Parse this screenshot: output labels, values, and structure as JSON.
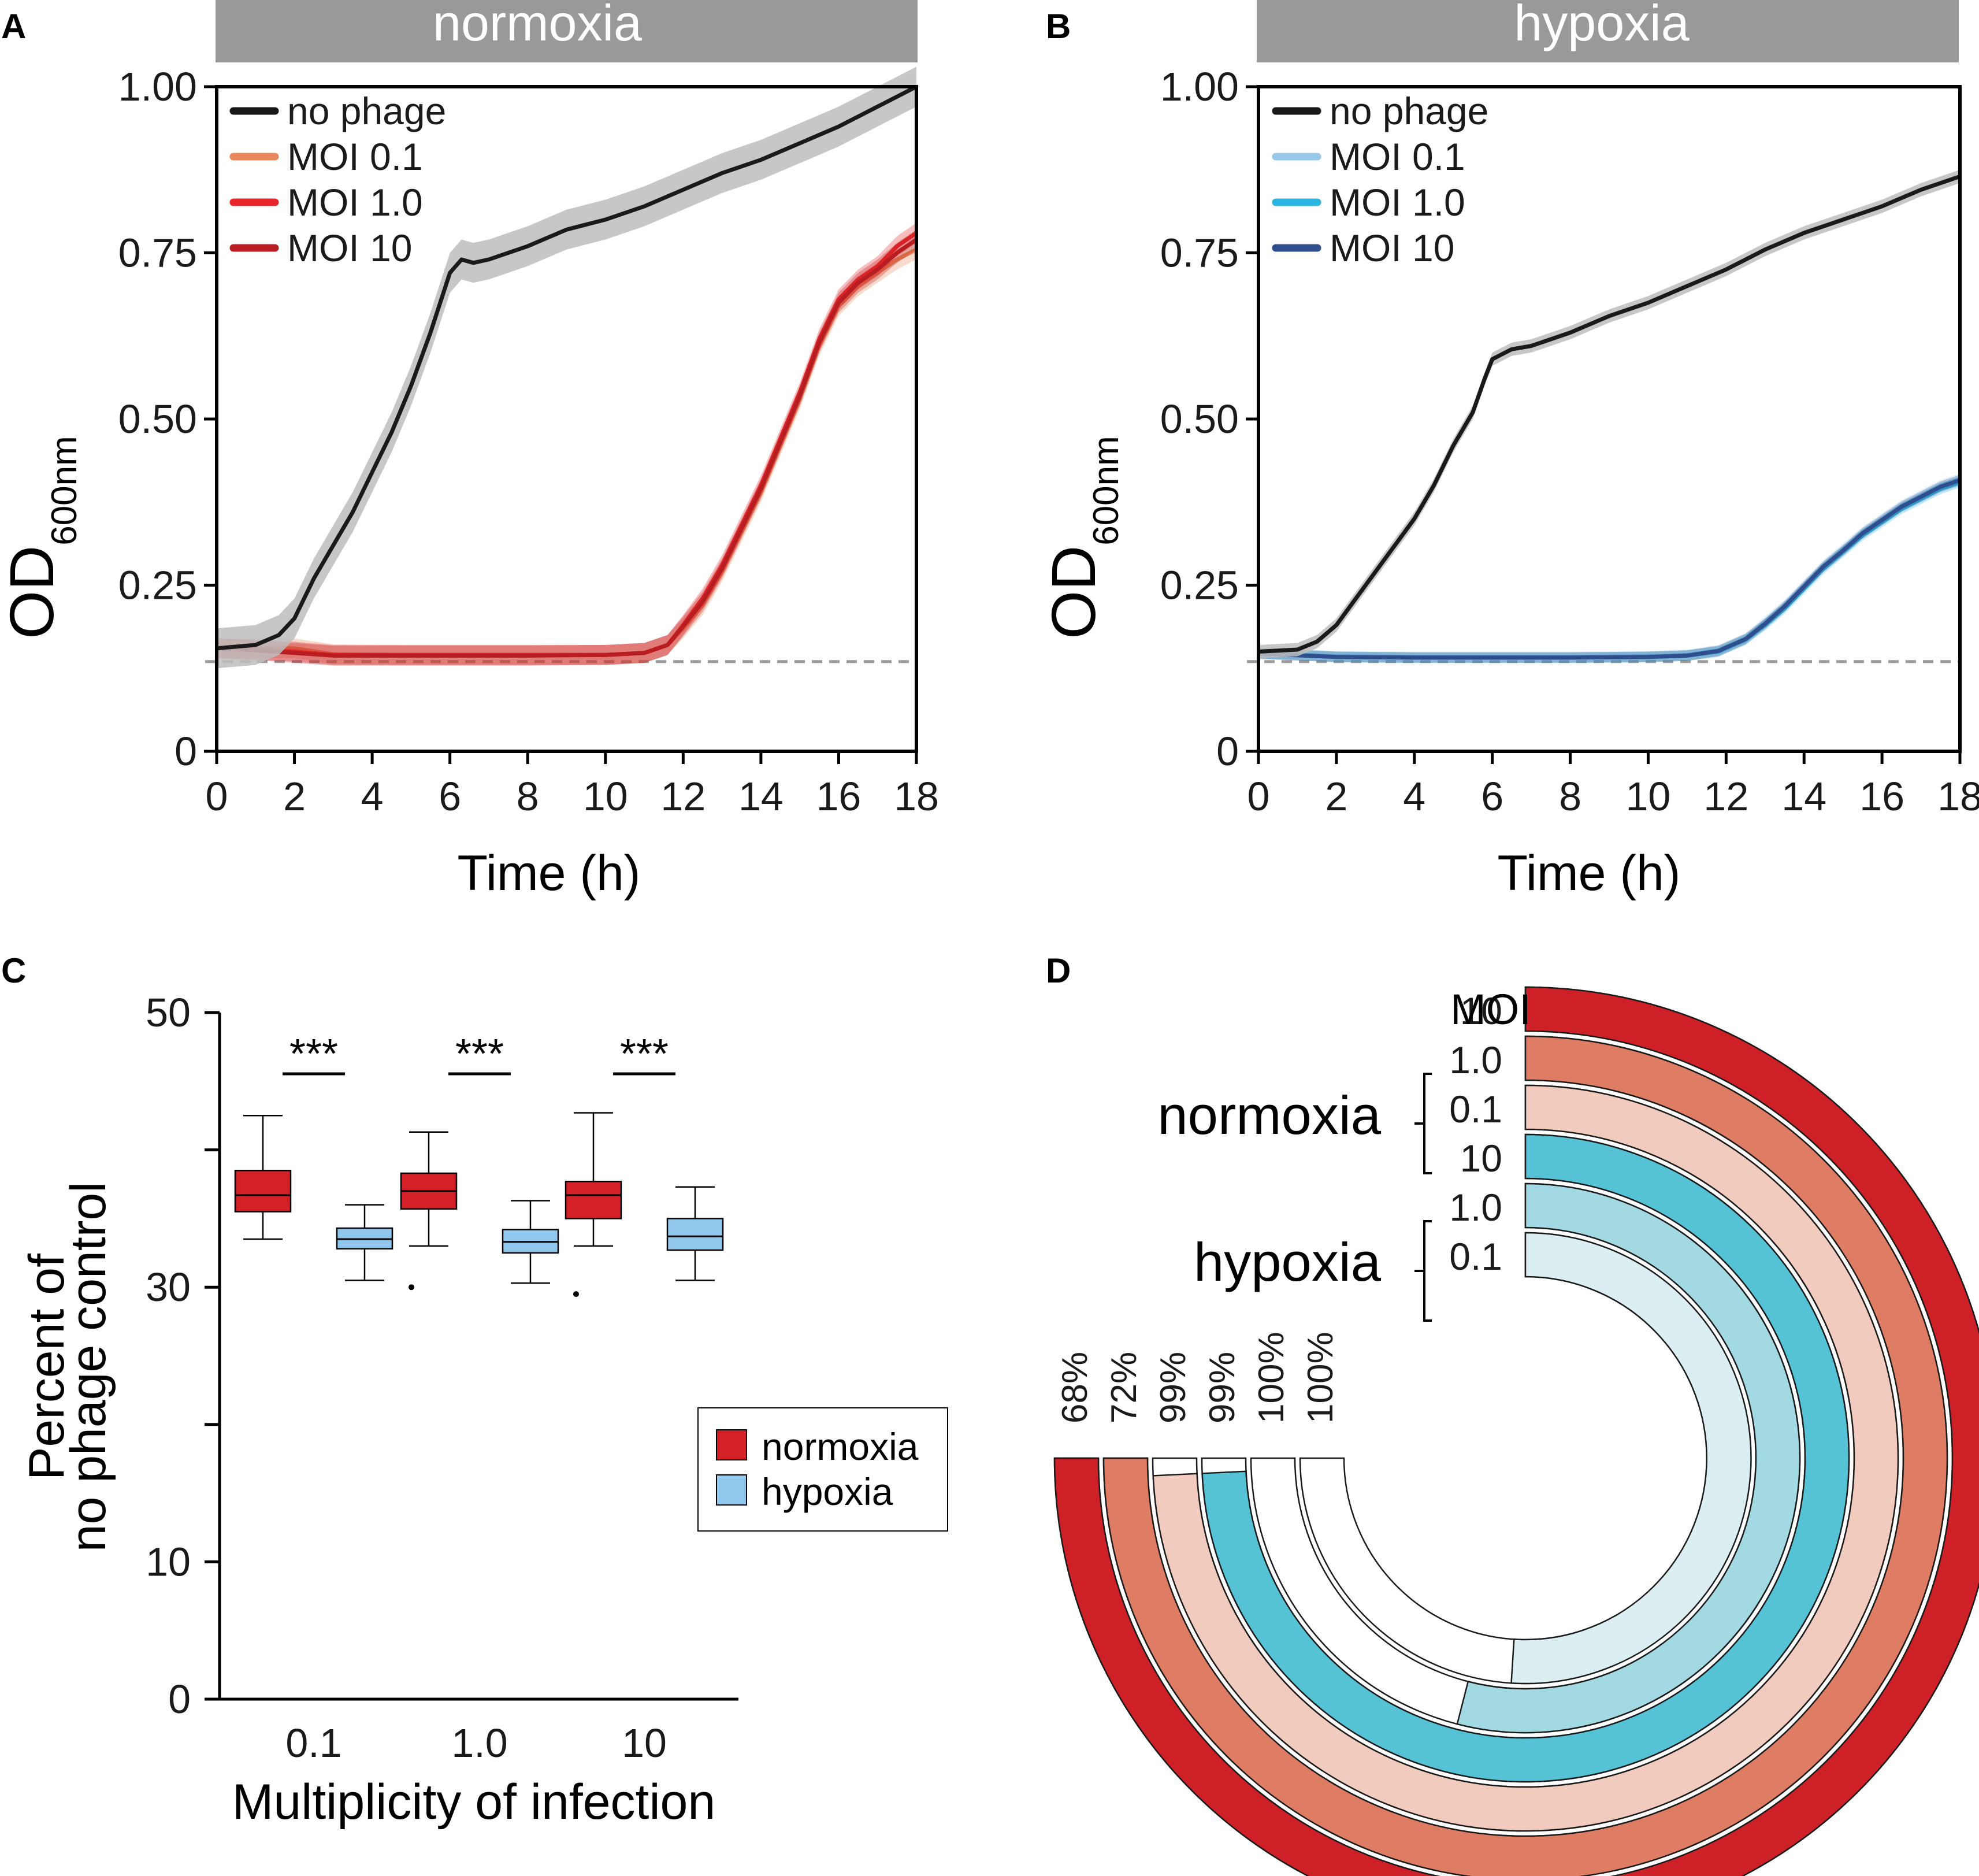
{
  "colors": {
    "no_phage": "#1a1a1a",
    "no_phage_band": "#bdbdbd",
    "n01": "#e8875a",
    "n10": "#e8262a",
    "n100": "#b81d22",
    "h01": "#98c8e8",
    "h10": "#2bb5e0",
    "h100": "#2f4e8e",
    "baseline": "#9a9a9a",
    "box_normoxia": "#d42027",
    "box_hypoxia": "#8fc8ec",
    "header_bg": "#999999",
    "ring_n10": "#cd2027",
    "ring_n1": "#de7d64",
    "ring_n01": "#f1cbbd",
    "ring_h10": "#55c2d5",
    "ring_h1": "#a3d9e3",
    "ring_h01": "#dbeff3"
  },
  "panels": {
    "a": {
      "letter": "A",
      "header": "normoxia"
    },
    "b": {
      "letter": "B",
      "header": "hypoxia"
    },
    "c": {
      "letter": "C"
    },
    "d": {
      "letter": "D"
    }
  },
  "chart_data": [
    {
      "id": "A",
      "type": "line",
      "title": "normoxia",
      "xlabel": "Time (h)",
      "ylabel": "OD",
      "ylabel_sub": "600nm",
      "xlim": [
        0,
        18
      ],
      "ylim": [
        0,
        1.0
      ],
      "xticks": [
        0,
        2,
        4,
        6,
        8,
        10,
        12,
        14,
        16,
        18
      ],
      "yticks": [
        0,
        0.25,
        0.5,
        0.75,
        1.0
      ],
      "ytick_labels": [
        "0",
        "0.25",
        "0.50",
        "0.75",
        "1.00"
      ],
      "baseline": 0.135,
      "legend_position": "top-left",
      "series": [
        {
          "name": "no phage",
          "color_key": "no_phage",
          "band": 0.03,
          "points": [
            [
              0,
              0.155
            ],
            [
              1,
              0.16
            ],
            [
              1.6,
              0.175
            ],
            [
              2,
              0.2
            ],
            [
              2.5,
              0.26
            ],
            [
              3,
              0.31
            ],
            [
              3.5,
              0.36
            ],
            [
              4,
              0.42
            ],
            [
              4.5,
              0.48
            ],
            [
              5,
              0.55
            ],
            [
              5.5,
              0.63
            ],
            [
              6,
              0.72
            ],
            [
              6.3,
              0.74
            ],
            [
              6.6,
              0.735
            ],
            [
              7,
              0.74
            ],
            [
              8,
              0.76
            ],
            [
              9,
              0.785
            ],
            [
              10,
              0.8
            ],
            [
              11,
              0.82
            ],
            [
              12,
              0.845
            ],
            [
              13,
              0.87
            ],
            [
              14,
              0.89
            ],
            [
              15,
              0.915
            ],
            [
              16,
              0.94
            ],
            [
              17,
              0.97
            ],
            [
              18,
              1.0
            ]
          ]
        },
        {
          "name": "MOI 0.1",
          "color_key": "n01",
          "band": 0.015,
          "points": [
            [
              0,
              0.155
            ],
            [
              1,
              0.155
            ],
            [
              2,
              0.155
            ],
            [
              3,
              0.146
            ],
            [
              5,
              0.145
            ],
            [
              8,
              0.145
            ],
            [
              10,
              0.145
            ],
            [
              11,
              0.148
            ],
            [
              11.6,
              0.16
            ],
            [
              12,
              0.185
            ],
            [
              12.5,
              0.22
            ],
            [
              13,
              0.27
            ],
            [
              13.5,
              0.33
            ],
            [
              14,
              0.39
            ],
            [
              14.5,
              0.46
            ],
            [
              15,
              0.53
            ],
            [
              15.5,
              0.61
            ],
            [
              16,
              0.67
            ],
            [
              16.5,
              0.7
            ],
            [
              17,
              0.72
            ],
            [
              17.5,
              0.74
            ],
            [
              18,
              0.755
            ]
          ]
        },
        {
          "name": "MOI 1.0",
          "color_key": "n10",
          "band": 0.015,
          "points": [
            [
              0,
              0.155
            ],
            [
              1,
              0.153
            ],
            [
              2,
              0.15
            ],
            [
              3,
              0.145
            ],
            [
              5,
              0.145
            ],
            [
              8,
              0.145
            ],
            [
              10,
              0.145
            ],
            [
              11,
              0.148
            ],
            [
              11.6,
              0.16
            ],
            [
              12,
              0.19
            ],
            [
              12.5,
              0.23
            ],
            [
              13,
              0.28
            ],
            [
              13.5,
              0.34
            ],
            [
              14,
              0.4
            ],
            [
              14.5,
              0.47
            ],
            [
              15,
              0.54
            ],
            [
              15.5,
              0.62
            ],
            [
              16,
              0.68
            ],
            [
              16.5,
              0.71
            ],
            [
              17,
              0.73
            ],
            [
              17.5,
              0.76
            ],
            [
              18,
              0.78
            ]
          ]
        },
        {
          "name": "MOI 10",
          "color_key": "n100",
          "band": 0.015,
          "points": [
            [
              0,
              0.155
            ],
            [
              1,
              0.152
            ],
            [
              2,
              0.148
            ],
            [
              3,
              0.144
            ],
            [
              5,
              0.144
            ],
            [
              8,
              0.144
            ],
            [
              10,
              0.145
            ],
            [
              11,
              0.148
            ],
            [
              11.6,
              0.16
            ],
            [
              12,
              0.188
            ],
            [
              12.5,
              0.225
            ],
            [
              13,
              0.275
            ],
            [
              13.5,
              0.335
            ],
            [
              14,
              0.395
            ],
            [
              14.5,
              0.465
            ],
            [
              15,
              0.535
            ],
            [
              15.5,
              0.615
            ],
            [
              16,
              0.675
            ],
            [
              16.5,
              0.705
            ],
            [
              17,
              0.725
            ],
            [
              17.5,
              0.75
            ],
            [
              18,
              0.77
            ]
          ]
        }
      ]
    },
    {
      "id": "B",
      "type": "line",
      "title": "hypoxia",
      "xlabel": "Time (h)",
      "ylabel": "OD",
      "ylabel_sub": "600nm",
      "xlim": [
        0,
        18
      ],
      "ylim": [
        0,
        1.0
      ],
      "xticks": [
        0,
        2,
        4,
        6,
        8,
        10,
        12,
        14,
        16,
        18
      ],
      "yticks": [
        0,
        0.25,
        0.5,
        0.75,
        1.0
      ],
      "ytick_labels": [
        "0",
        "0.25",
        "0.50",
        "0.75",
        "1.00"
      ],
      "baseline": 0.135,
      "legend_position": "top-left",
      "series": [
        {
          "name": "no phage",
          "color_key": "no_phage",
          "band": 0.01,
          "points": [
            [
              0,
              0.15
            ],
            [
              1,
              0.153
            ],
            [
              1.5,
              0.165
            ],
            [
              2,
              0.19
            ],
            [
              2.5,
              0.23
            ],
            [
              3,
              0.27
            ],
            [
              3.5,
              0.31
            ],
            [
              4,
              0.35
            ],
            [
              4.5,
              0.4
            ],
            [
              5,
              0.46
            ],
            [
              5.5,
              0.51
            ],
            [
              5.8,
              0.56
            ],
            [
              6,
              0.59
            ],
            [
              6.5,
              0.605
            ],
            [
              7,
              0.61
            ],
            [
              8,
              0.63
            ],
            [
              9,
              0.655
            ],
            [
              10,
              0.675
            ],
            [
              11,
              0.7
            ],
            [
              12,
              0.725
            ],
            [
              13,
              0.755
            ],
            [
              14,
              0.78
            ],
            [
              15,
              0.8
            ],
            [
              16,
              0.82
            ],
            [
              17,
              0.845
            ],
            [
              18,
              0.865
            ]
          ]
        },
        {
          "name": "MOI 0.1",
          "color_key": "h01",
          "band": 0.008,
          "points": [
            [
              0,
              0.148
            ],
            [
              2,
              0.143
            ],
            [
              4,
              0.142
            ],
            [
              6,
              0.142
            ],
            [
              8,
              0.142
            ],
            [
              10,
              0.143
            ],
            [
              11,
              0.145
            ],
            [
              11.8,
              0.152
            ],
            [
              12.5,
              0.17
            ],
            [
              13,
              0.195
            ],
            [
              13.5,
              0.22
            ],
            [
              14,
              0.25
            ],
            [
              14.5,
              0.28
            ],
            [
              15,
              0.305
            ],
            [
              15.5,
              0.33
            ],
            [
              16,
              0.35
            ],
            [
              16.5,
              0.37
            ],
            [
              17,
              0.385
            ],
            [
              17.5,
              0.4
            ],
            [
              18,
              0.41
            ]
          ]
        },
        {
          "name": "MOI 1.0",
          "color_key": "h10",
          "band": 0.008,
          "points": [
            [
              0,
              0.148
            ],
            [
              2,
              0.142
            ],
            [
              4,
              0.141
            ],
            [
              6,
              0.141
            ],
            [
              8,
              0.141
            ],
            [
              10,
              0.142
            ],
            [
              11,
              0.144
            ],
            [
              11.8,
              0.15
            ],
            [
              12.5,
              0.168
            ],
            [
              13,
              0.19
            ],
            [
              13.5,
              0.215
            ],
            [
              14,
              0.245
            ],
            [
              14.5,
              0.275
            ],
            [
              15,
              0.3
            ],
            [
              15.5,
              0.325
            ],
            [
              16,
              0.345
            ],
            [
              16.5,
              0.365
            ],
            [
              17,
              0.38
            ],
            [
              17.5,
              0.395
            ],
            [
              18,
              0.405
            ]
          ]
        },
        {
          "name": "MOI 10",
          "color_key": "h100",
          "band": 0.008,
          "points": [
            [
              0,
              0.147
            ],
            [
              2,
              0.142
            ],
            [
              4,
              0.141
            ],
            [
              6,
              0.141
            ],
            [
              8,
              0.141
            ],
            [
              10,
              0.142
            ],
            [
              11,
              0.144
            ],
            [
              11.8,
              0.151
            ],
            [
              12.5,
              0.169
            ],
            [
              13,
              0.192
            ],
            [
              13.5,
              0.218
            ],
            [
              14,
              0.248
            ],
            [
              14.5,
              0.278
            ],
            [
              15,
              0.302
            ],
            [
              15.5,
              0.328
            ],
            [
              16,
              0.348
            ],
            [
              16.5,
              0.368
            ],
            [
              17,
              0.383
            ],
            [
              17.5,
              0.398
            ],
            [
              18,
              0.408
            ]
          ]
        }
      ]
    },
    {
      "id": "C",
      "type": "box",
      "xlabel": "Multiplicity of infection",
      "ylabel_line1": "Percent of",
      "ylabel_line2": "no phage control",
      "ylim": [
        0,
        50
      ],
      "yticks": [
        0,
        10,
        30,
        50
      ],
      "categories": [
        "0.1",
        "1.0",
        "10"
      ],
      "significance": [
        "***",
        "***",
        "***"
      ],
      "legend_position": "right",
      "series": [
        {
          "name": "normoxia",
          "color_key": "box_normoxia",
          "boxes": [
            {
              "whislo": 33.5,
              "q1": 35.5,
              "med": 36.7,
              "q3": 38.5,
              "whishi": 42.5,
              "outliers": []
            },
            {
              "whislo": 33.0,
              "q1": 35.7,
              "med": 37.0,
              "q3": 38.3,
              "whishi": 41.3,
              "outliers": [
                30.0
              ]
            },
            {
              "whislo": 33.0,
              "q1": 35.0,
              "med": 36.7,
              "q3": 37.7,
              "whishi": 42.7,
              "outliers": [
                29.5
              ]
            }
          ]
        },
        {
          "name": "hypoxia",
          "color_key": "box_hypoxia",
          "boxes": [
            {
              "whislo": 30.5,
              "q1": 32.8,
              "med": 33.5,
              "q3": 34.3,
              "whishi": 36.0,
              "outliers": []
            },
            {
              "whislo": 30.3,
              "q1": 32.5,
              "med": 33.3,
              "q3": 34.2,
              "whishi": 36.3,
              "outliers": []
            },
            {
              "whislo": 30.5,
              "q1": 32.7,
              "med": 33.7,
              "q3": 35.0,
              "whishi": 37.3,
              "outliers": []
            }
          ]
        }
      ]
    },
    {
      "id": "D",
      "type": "radial-bar",
      "title": "MOI",
      "group_labels": [
        "normoxia",
        "hypoxia"
      ],
      "rings": [
        {
          "group": "normoxia",
          "moi": "10",
          "value": 100,
          "color_key": "ring_n10"
        },
        {
          "group": "normoxia",
          "moi": "1.0",
          "value": 100,
          "color_key": "ring_n1"
        },
        {
          "group": "normoxia",
          "moi": "0.1",
          "value": 99,
          "color_key": "ring_n01"
        },
        {
          "group": "hypoxia",
          "moi": "10",
          "value": 99,
          "color_key": "ring_h10"
        },
        {
          "group": "hypoxia",
          "moi": "1.0",
          "value": 72,
          "color_key": "ring_h1"
        },
        {
          "group": "hypoxia",
          "moi": "0.1",
          "value": 68,
          "color_key": "ring_h01"
        }
      ],
      "percent_labels": [
        "68%",
        "72%",
        "99%",
        "99%",
        "100%",
        "100%"
      ]
    }
  ]
}
